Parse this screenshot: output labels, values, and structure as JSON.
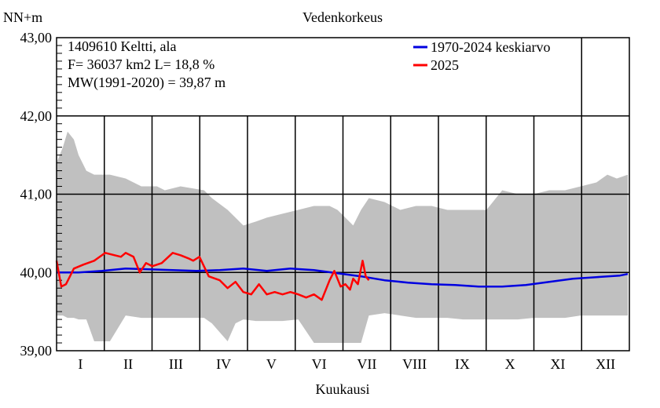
{
  "chart_data": {
    "type": "line",
    "title": "Vedenkorkeus",
    "ylabel": "NN+m",
    "xlabel": "Kuukausi",
    "ylim": [
      39.0,
      43.0
    ],
    "yticks": [
      "39,00",
      "40,00",
      "41,00",
      "42,00",
      "43,00"
    ],
    "ytick_values": [
      39.0,
      40.0,
      41.0,
      42.0,
      43.0
    ],
    "months": [
      "I",
      "II",
      "III",
      "IV",
      "V",
      "VI",
      "VII",
      "VIII",
      "IX",
      "X",
      "XI",
      "XII"
    ],
    "x_unit": "day of year",
    "xlim": [
      1,
      366
    ],
    "info": {
      "line1": "1409610 Keltti, ala",
      "line2": "F=  36037 km2 L=  18,8 %",
      "line3": "MW(1991-2020) = 39,87 m"
    },
    "colors": {
      "band": "#c0c0c0",
      "mean": "#0000e0",
      "current": "#ff0000",
      "grid": "#000000"
    },
    "band": {
      "name": "",
      "x": [
        1,
        5,
        8,
        12,
        15,
        20,
        25,
        35,
        45,
        55,
        65,
        70,
        80,
        95,
        100,
        110,
        115,
        120,
        128,
        135,
        145,
        155,
        165,
        175,
        180,
        185,
        190,
        195,
        200,
        210,
        220,
        230,
        240,
        250,
        260,
        275,
        285,
        295,
        305,
        315,
        325,
        335,
        345,
        352,
        358,
        365
      ],
      "max": [
        41.4,
        41.6,
        41.8,
        41.7,
        41.5,
        41.3,
        41.25,
        41.25,
        41.2,
        41.1,
        41.1,
        41.05,
        41.1,
        41.05,
        40.95,
        40.8,
        40.7,
        40.6,
        40.65,
        40.7,
        40.75,
        40.8,
        40.85,
        40.85,
        40.8,
        40.7,
        40.6,
        40.8,
        40.95,
        40.9,
        40.8,
        40.85,
        40.85,
        40.8,
        40.8,
        40.8,
        41.05,
        41.0,
        41.0,
        41.05,
        41.05,
        41.1,
        41.15,
        41.25,
        41.2,
        41.25
      ],
      "min": [
        39.45,
        39.45,
        39.42,
        39.42,
        39.4,
        39.4,
        39.12,
        39.12,
        39.45,
        39.42,
        39.42,
        39.42,
        39.42,
        39.42,
        39.35,
        39.12,
        39.35,
        39.4,
        39.38,
        39.38,
        39.38,
        39.4,
        39.1,
        39.1,
        39.1,
        39.1,
        39.1,
        39.1,
        39.45,
        39.48,
        39.45,
        39.42,
        39.42,
        39.42,
        39.4,
        39.4,
        39.4,
        39.4,
        39.42,
        39.42,
        39.42,
        39.45,
        39.45,
        39.45,
        39.45,
        39.45
      ]
    },
    "series": [
      {
        "name": "1970-2024 keskiarvo",
        "x": [
          1,
          15,
          30,
          45,
          60,
          75,
          90,
          105,
          120,
          135,
          150,
          165,
          180,
          195,
          210,
          225,
          240,
          255,
          270,
          285,
          300,
          315,
          330,
          345,
          360,
          365
        ],
        "values": [
          40.0,
          40.0,
          40.02,
          40.05,
          40.04,
          40.03,
          40.02,
          40.03,
          40.05,
          40.02,
          40.05,
          40.03,
          39.99,
          39.95,
          39.9,
          39.87,
          39.85,
          39.84,
          39.82,
          39.82,
          39.84,
          39.88,
          39.92,
          39.94,
          39.96,
          39.98
        ]
      },
      {
        "name": "2025",
        "x": [
          1,
          4,
          7,
          12,
          18,
          25,
          32,
          38,
          42,
          45,
          50,
          54,
          58,
          62,
          68,
          75,
          80,
          85,
          88,
          92,
          98,
          105,
          110,
          115,
          120,
          125,
          130,
          135,
          140,
          145,
          150,
          155,
          160,
          165,
          170,
          175,
          178,
          182,
          185,
          188,
          190,
          193,
          196,
          198,
          200
        ],
        "values": [
          40.15,
          39.82,
          39.85,
          40.05,
          40.1,
          40.15,
          40.25,
          40.22,
          40.2,
          40.25,
          40.2,
          40.0,
          40.12,
          40.08,
          40.12,
          40.25,
          40.22,
          40.18,
          40.15,
          40.2,
          39.95,
          39.9,
          39.8,
          39.88,
          39.75,
          39.72,
          39.85,
          39.72,
          39.75,
          39.72,
          39.75,
          39.72,
          39.68,
          39.72,
          39.65,
          39.9,
          40.02,
          39.82,
          39.85,
          39.78,
          39.92,
          39.85,
          40.15,
          39.95,
          39.9
        ]
      }
    ],
    "legend_position": "top-right",
    "grid": true
  }
}
